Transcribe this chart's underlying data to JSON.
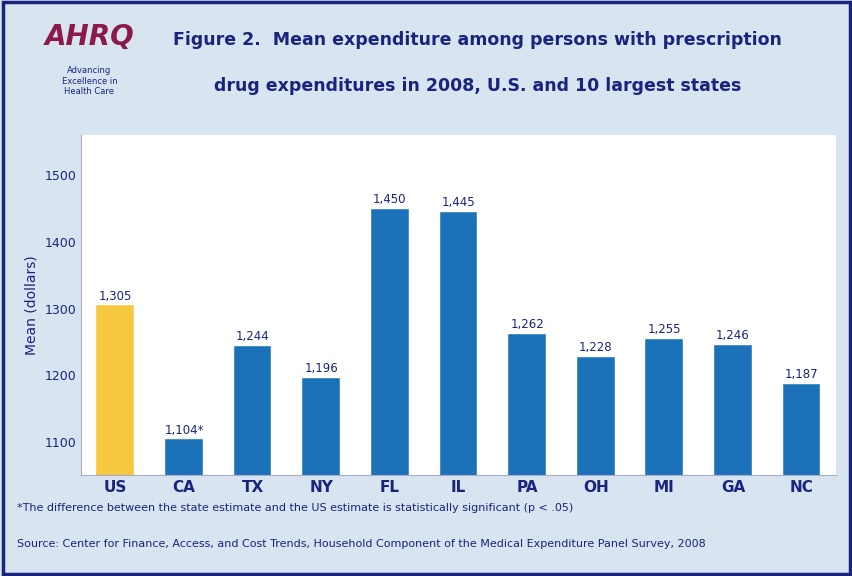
{
  "categories": [
    "US",
    "CA",
    "TX",
    "NY",
    "FL",
    "IL",
    "PA",
    "OH",
    "MI",
    "GA",
    "NC"
  ],
  "values": [
    1305,
    1104,
    1244,
    1196,
    1450,
    1445,
    1262,
    1228,
    1255,
    1246,
    1187
  ],
  "labels": [
    "1,305",
    "1,104*",
    "1,244",
    "1,196",
    "1,450",
    "1,445",
    "1,262",
    "1,228",
    "1,255",
    "1,246",
    "1,187"
  ],
  "bar_colors": [
    "#F5C840",
    "#1B72B8",
    "#1B72B8",
    "#1B72B8",
    "#1B72B8",
    "#1B72B8",
    "#1B72B8",
    "#1B72B8",
    "#1B72B8",
    "#1B72B8",
    "#1B72B8"
  ],
  "ylabel": "Mean (dollars)",
  "ylim": [
    1050,
    1560
  ],
  "yticks": [
    1100,
    1200,
    1300,
    1400,
    1500
  ],
  "title_line1": "Figure 2.  Mean expenditure among persons with prescription",
  "title_line2": "drug expenditures in 2008, U.S. and 10 largest states",
  "title_color": "#1A237E",
  "axis_color": "#1A237E",
  "footnote1": "*The difference between the state estimate and the US estimate is statistically significant (p < .05)",
  "footnote2": "Source: Center for Finance, Access, and Cost Trends, Household Component of the Medical Expenditure Panel Survey, 2008",
  "background_color": "#FFFFFF",
  "outer_bg_color": "#D8E4F0",
  "label_color": "#1A237E",
  "label_fontsize": 8.5,
  "tick_fontsize": 9,
  "ylabel_fontsize": 10,
  "separator_color": "#1A237E",
  "border_color": "#1A237E",
  "xticklabel_color": "#1A237E",
  "xticklabel_fontsize": 11,
  "bar_width": 0.55
}
